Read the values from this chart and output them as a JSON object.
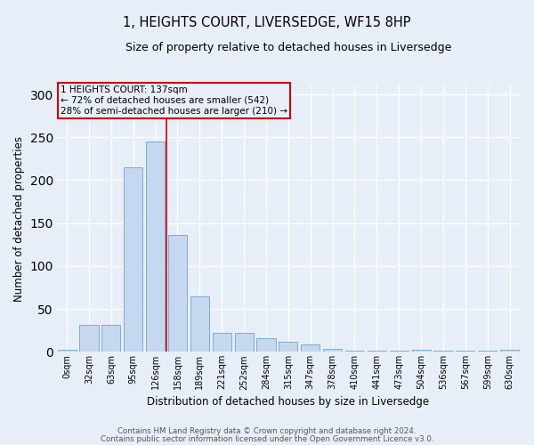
{
  "title": "1, HEIGHTS COURT, LIVERSEDGE, WF15 8HP",
  "subtitle": "Size of property relative to detached houses in Liversedge",
  "xlabel": "Distribution of detached houses by size in Liversedge",
  "ylabel": "Number of detached properties",
  "bar_color": "#c5d8f0",
  "bar_edge_color": "#7aadd4",
  "background_color": "#e8eef8",
  "grid_color": "#ffffff",
  "annotation_box_color": "#cc0000",
  "vline_color": "#cc0000",
  "categories": [
    "0sqm",
    "32sqm",
    "63sqm",
    "95sqm",
    "126sqm",
    "158sqm",
    "189sqm",
    "221sqm",
    "252sqm",
    "284sqm",
    "315sqm",
    "347sqm",
    "378sqm",
    "410sqm",
    "441sqm",
    "473sqm",
    "504sqm",
    "536sqm",
    "567sqm",
    "599sqm",
    "630sqm"
  ],
  "values": [
    2,
    31,
    31,
    215,
    245,
    136,
    65,
    22,
    22,
    16,
    12,
    9,
    3,
    1,
    1,
    1,
    2,
    1,
    1,
    1,
    2
  ],
  "ylim": [
    0,
    310
  ],
  "yticks": [
    0,
    50,
    100,
    150,
    200,
    250,
    300
  ],
  "annotation_text_line1": "1 HEIGHTS COURT: 137sqm",
  "annotation_text_line2": "← 72% of detached houses are smaller (542)",
  "annotation_text_line3": "28% of semi-detached houses are larger (210) →",
  "vline_x": 4.5,
  "footer1": "Contains HM Land Registry data © Crown copyright and database right 2024.",
  "footer2": "Contains public sector information licensed under the Open Government Licence v3.0."
}
